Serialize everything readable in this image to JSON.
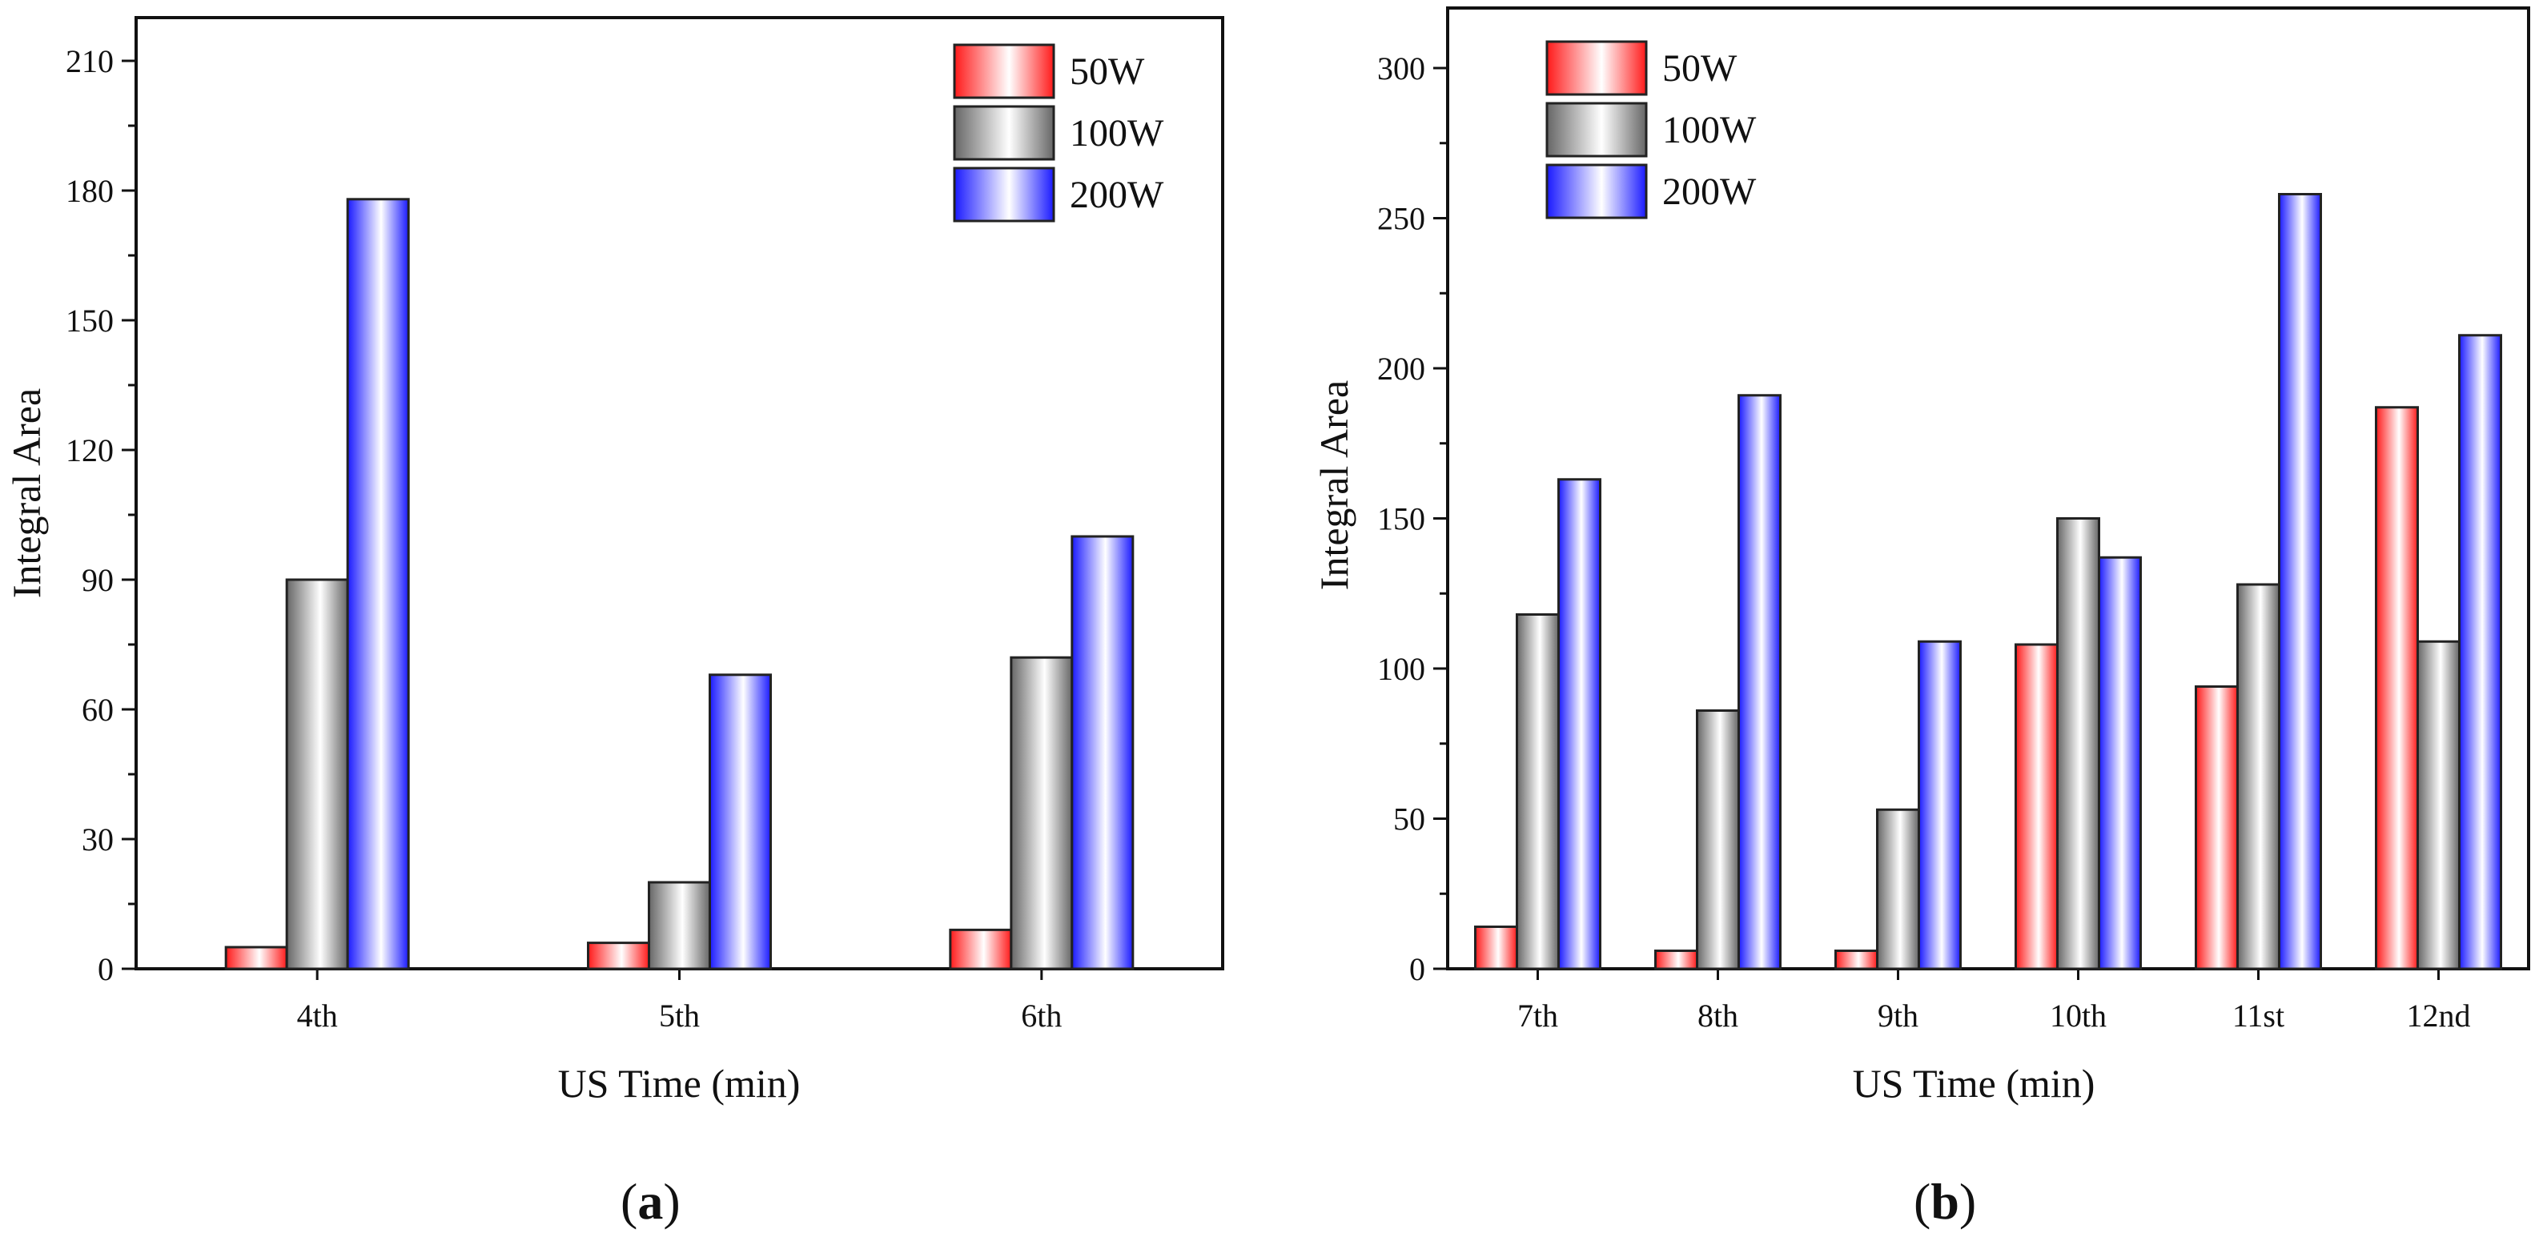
{
  "chart_data": [
    {
      "type": "bar",
      "panel": "(a)",
      "panel_letter": "a",
      "xlabel": "US Time (min)",
      "ylabel": "Integral Area",
      "ylim": [
        0,
        220
      ],
      "yticks": [
        0,
        30,
        60,
        90,
        120,
        150,
        180,
        210
      ],
      "categories": [
        "4th",
        "5th",
        "6th"
      ],
      "series": [
        {
          "name": "50W",
          "values": [
            5,
            6,
            9
          ]
        },
        {
          "name": "100W",
          "values": [
            90,
            20,
            72
          ]
        },
        {
          "name": "200W",
          "values": [
            178,
            68,
            100
          ]
        }
      ],
      "legend": "top-right"
    },
    {
      "type": "bar",
      "panel": "(b)",
      "panel_letter": "b",
      "xlabel": "US Time (min)",
      "ylabel": "Integral Area",
      "ylim": [
        0,
        320
      ],
      "yticks": [
        0,
        50,
        100,
        150,
        200,
        250,
        300
      ],
      "categories": [
        "7th",
        "8th",
        "9th",
        "10th",
        "11st",
        "12nd"
      ],
      "series": [
        {
          "name": "50W",
          "values": [
            14,
            6,
            6,
            108,
            94,
            187
          ]
        },
        {
          "name": "100W",
          "values": [
            118,
            86,
            53,
            150,
            128,
            109
          ]
        },
        {
          "name": "200W",
          "values": [
            163,
            191,
            109,
            137,
            258,
            211
          ]
        }
      ],
      "legend": "top-left"
    }
  ],
  "colors": {
    "50W": "#ff1a1a",
    "100W": "#666666",
    "200W": "#1a1aff",
    "axis": "#111111",
    "bar_edge": "#222222"
  }
}
